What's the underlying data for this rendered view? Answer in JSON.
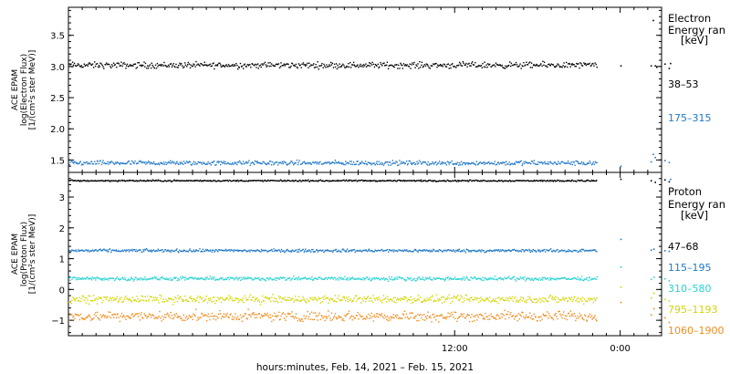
{
  "figure": {
    "xlabel": "hours:minutes, Feb. 14, 2021 – Feb. 15, 2021"
  },
  "chart_data": [
    {
      "type": "scatter",
      "panel": "electron",
      "ylabel_lines": [
        "ACE EPAM",
        "log(Electron Flux)",
        "[1/(cm²s ster MeV)]"
      ],
      "legend_title_lines": [
        "Electron",
        "Energy ran",
        "[keV]"
      ],
      "legend_placement": "right",
      "ylim": [
        1.3,
        3.95
      ],
      "yticks": [
        1.5,
        2.0,
        2.5,
        3.0,
        3.5
      ],
      "ytick_labels": [
        "1.5",
        "2.0",
        "2.5",
        "3.0",
        "3.5"
      ],
      "xlim_hours": [
        -16,
        27
      ],
      "xticks_hours": [
        12,
        24
      ],
      "xtick_labels": [
        "12:00",
        "0:00"
      ],
      "grid": false,
      "series": [
        {
          "name": "38–53",
          "color": "#000000",
          "segments": [
            [
              -16,
              22.3,
              3.03,
              0.04
            ]
          ],
          "points": [
            [
              24.0,
              3.02
            ],
            [
              26.2,
              3.02
            ],
            [
              26.35,
              3.75
            ],
            [
              26.5,
              3.02
            ],
            [
              26.6,
              3.0
            ],
            [
              27.2,
              3.05
            ],
            [
              27.5,
              2.98
            ],
            [
              27.6,
              3.06
            ]
          ]
        },
        {
          "name": "175–315",
          "color": "#1f77c8",
          "segments": [
            [
              -16,
              22.3,
              1.46,
              0.03
            ]
          ],
          "points": [
            [
              24.0,
              1.41
            ],
            [
              26.2,
              1.48
            ],
            [
              26.35,
              1.6
            ],
            [
              26.5,
              1.55
            ],
            [
              27.2,
              1.5
            ],
            [
              27.5,
              1.47
            ],
            [
              27.6,
              1.2
            ]
          ]
        }
      ]
    },
    {
      "type": "scatter",
      "panel": "proton",
      "ylabel_lines": [
        "ACE EPAM",
        "log(Proton Flux)",
        "[1/(cm²s ster MeV)]"
      ],
      "legend_title_lines": [
        "Proton",
        "Energy ran",
        "[keV]"
      ],
      "legend_placement": "right",
      "ylim": [
        -1.5,
        3.8
      ],
      "yticks": [
        -1,
        0,
        1,
        2,
        3
      ],
      "ytick_labels": [
        "−1",
        "0",
        "1",
        "2",
        "3"
      ],
      "xlim_hours": [
        -16,
        27
      ],
      "xticks_hours": [
        12,
        24
      ],
      "xtick_labels": [
        "12:00",
        "0:00"
      ],
      "grid": false,
      "series": [
        {
          "name": "47–68",
          "color": "#000000",
          "segments": [
            [
              -16,
              22.3,
              3.55,
              0.02
            ]
          ],
          "points": [
            [
              24.0,
              3.6
            ],
            [
              26.2,
              3.55
            ],
            [
              26.5,
              3.5
            ],
            [
              27.2,
              3.58
            ],
            [
              27.5,
              3.52
            ]
          ]
        },
        {
          "name": "115–195",
          "color": "#1f77c8",
          "segments": [
            [
              -16,
              22.3,
              1.28,
              0.04
            ]
          ],
          "points": [
            [
              24.0,
              1.65
            ],
            [
              26.2,
              1.3
            ],
            [
              26.4,
              1.33
            ],
            [
              27.2,
              1.28
            ],
            [
              27.5,
              1.26
            ]
          ]
        },
        {
          "name": "310–580",
          "color": "#25d2d2",
          "segments": [
            [
              -16,
              22.3,
              0.37,
              0.05
            ]
          ],
          "points": [
            [
              24.0,
              0.75
            ],
            [
              26.2,
              0.35
            ],
            [
              26.4,
              0.42
            ],
            [
              27.2,
              0.37
            ],
            [
              27.5,
              0.3
            ]
          ]
        },
        {
          "name": "795–1193",
          "color": "#d4d400",
          "segments": [
            [
              -16,
              22.3,
              -0.3,
              0.1
            ]
          ],
          "points": [
            [
              24.0,
              0.1
            ],
            [
              26.2,
              -0.25
            ],
            [
              26.4,
              -0.1
            ],
            [
              27.2,
              -0.3
            ],
            [
              27.5,
              -0.35
            ]
          ]
        },
        {
          "name": "1060–1900",
          "color": "#f08c1e",
          "segments": [
            [
              -16,
              22.3,
              -0.85,
              0.13
            ]
          ],
          "points": [
            [
              24.0,
              -0.4
            ],
            [
              26.2,
              -0.8
            ],
            [
              26.4,
              -0.6
            ],
            [
              27.2,
              -0.9
            ],
            [
              27.5,
              -1.05
            ]
          ]
        }
      ]
    }
  ]
}
